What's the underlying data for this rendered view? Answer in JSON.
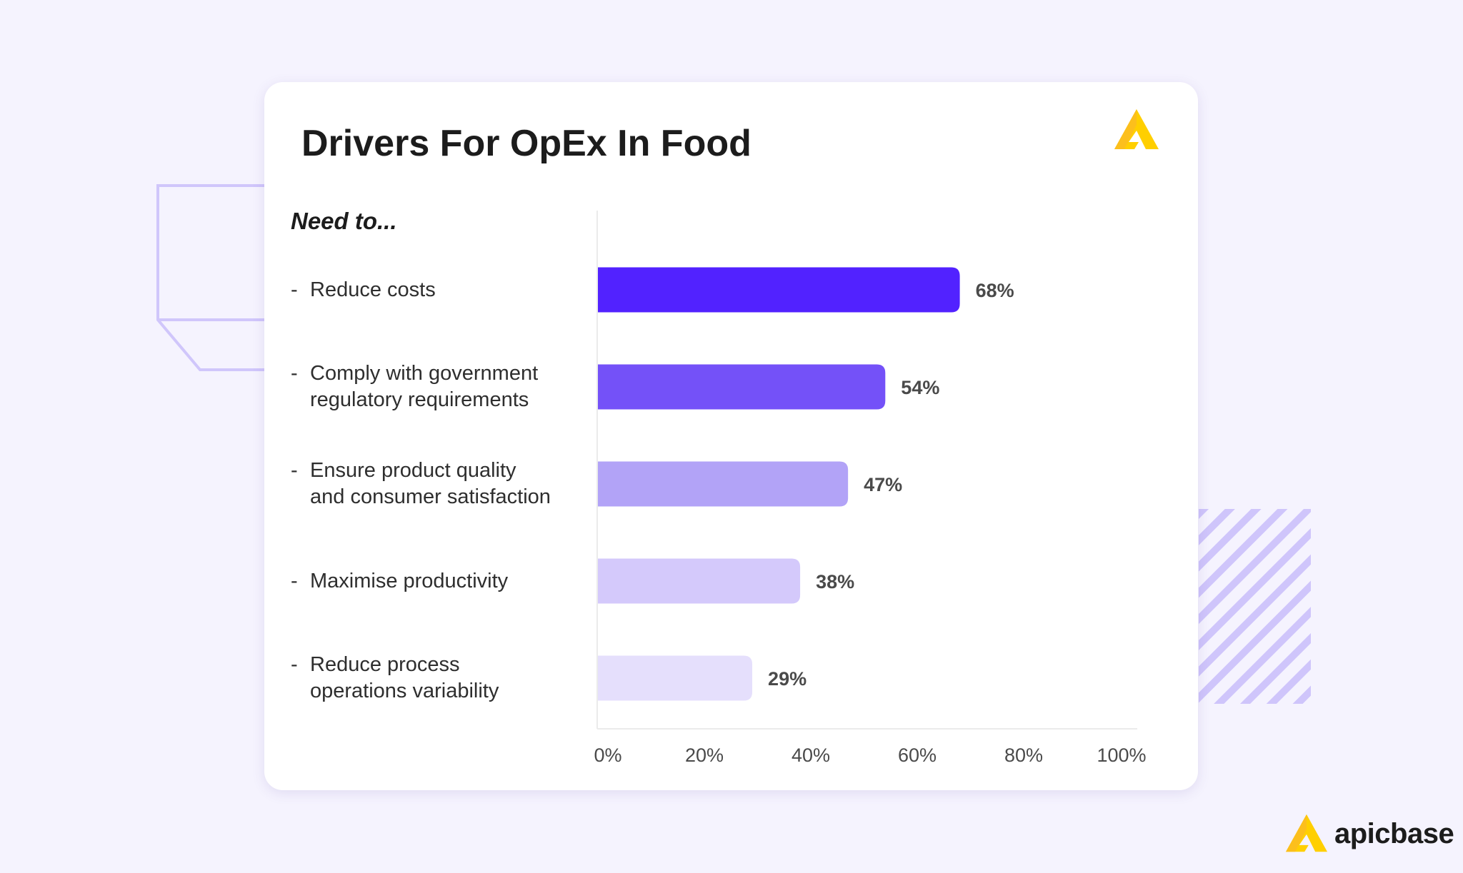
{
  "chart_data": {
    "type": "bar",
    "orientation": "horizontal",
    "title": "Drivers For OpEx In Food",
    "subtitle": "Need to...",
    "categories": [
      "Reduce costs",
      "Comply with government\nregulatory requirements",
      "Ensure product quality\nand consumer satisfaction",
      "Maximise productivity",
      "Reduce process\noperations variability"
    ],
    "values": [
      68,
      54,
      47,
      38,
      29
    ],
    "data_labels": [
      "68%",
      "54%",
      "47%",
      "38%",
      "29%"
    ],
    "bar_colors": [
      "#5222ff",
      "#7451f8",
      "#b2a3f7",
      "#d4c9fb",
      "#e5dffc"
    ],
    "xlim": [
      0,
      100
    ],
    "x_ticks": [
      "0%",
      "20%",
      "40%",
      "60%",
      "80%",
      "100%"
    ],
    "grid": false,
    "legend": "none"
  },
  "brand": {
    "name": "apicbase",
    "logo_color": "#ffcc00"
  }
}
